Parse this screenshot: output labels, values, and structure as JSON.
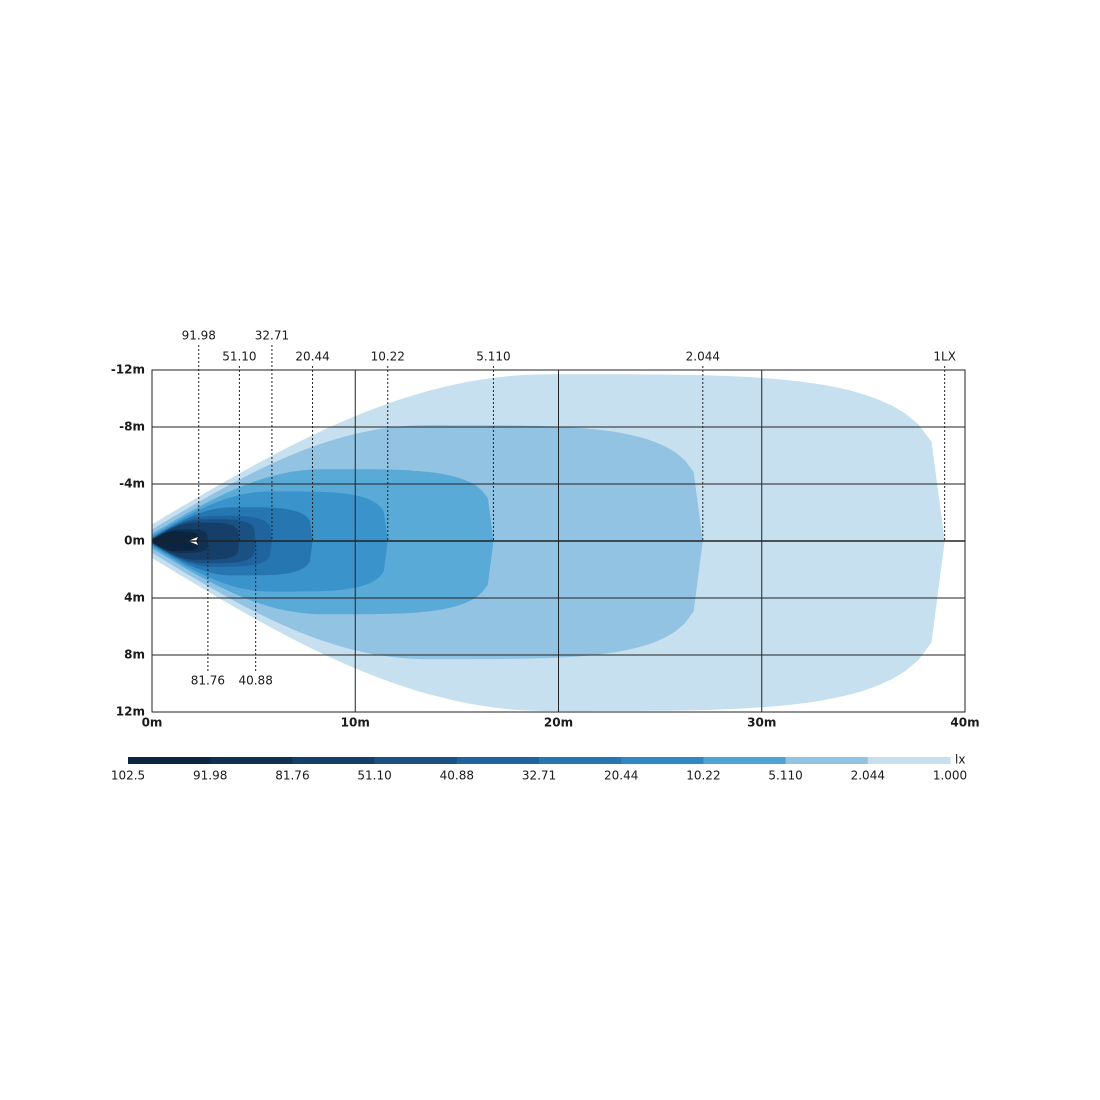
{
  "chart_data": {
    "type": "isolux",
    "xlim": [
      0,
      40
    ],
    "xticks": [
      {
        "value": 0,
        "label": "0m"
      },
      {
        "value": 10,
        "label": "10m"
      },
      {
        "value": 20,
        "label": "20m"
      },
      {
        "value": 30,
        "label": "30m"
      },
      {
        "value": 40,
        "label": "40m"
      }
    ],
    "ylim": [
      -12,
      12
    ],
    "yticks": [
      {
        "value": -12,
        "label": "-12m"
      },
      {
        "value": -8,
        "label": "-8m"
      },
      {
        "value": -4,
        "label": "-4m"
      },
      {
        "value": 0,
        "label": "0m"
      },
      {
        "value": 4,
        "label": "4m"
      },
      {
        "value": 8,
        "label": "8m"
      },
      {
        "value": 12,
        "label": "12m"
      }
    ],
    "grid": true,
    "contours": [
      {
        "label": "1LX",
        "reach": 39,
        "side": "top",
        "color": "#c6e0f0"
      },
      {
        "label": "2.044",
        "reach": 27.1,
        "side": "top",
        "color": "#92c3e3"
      },
      {
        "label": "5.110",
        "reach": 16.8,
        "side": "top",
        "color": "#5aaad7"
      },
      {
        "label": "10.22",
        "reach": 11.6,
        "side": "top",
        "color": "#3b93cb"
      },
      {
        "label": "20.44",
        "reach": 7.9,
        "side": "top",
        "color": "#2676b2"
      },
      {
        "label": "32.71",
        "reach": 5.9,
        "side": "top",
        "color": "#1f649e"
      },
      {
        "label": "40.88",
        "reach": 5.1,
        "side": "bottom",
        "color": "#1a5182"
      },
      {
        "label": "51.10",
        "reach": 4.3,
        "side": "top",
        "color": "#153f68"
      },
      {
        "label": "81.76",
        "reach": 2.75,
        "side": "bottom",
        "color": "#0f3152"
      },
      {
        "label": "91.98",
        "reach": 2.3,
        "side": "top",
        "color": "#0b2540"
      }
    ],
    "legend": {
      "unit": "lx",
      "levels": [
        102.5,
        91.98,
        81.76,
        {
          "value": 51.1,
          "label": "51.10"
        },
        40.88,
        32.71,
        20.44,
        10.22,
        {
          "value": 5.11,
          "label": "5.110"
        },
        2.044,
        {
          "value": 1,
          "label": "1.000"
        }
      ],
      "colors": [
        "#0b2540",
        "#0f3152",
        "#153f68",
        "#1a5182",
        "#1f649e",
        "#2676b2",
        "#2f88c3",
        "#4ea3d4",
        "#92c3e3",
        "#c6e0f0"
      ]
    }
  }
}
